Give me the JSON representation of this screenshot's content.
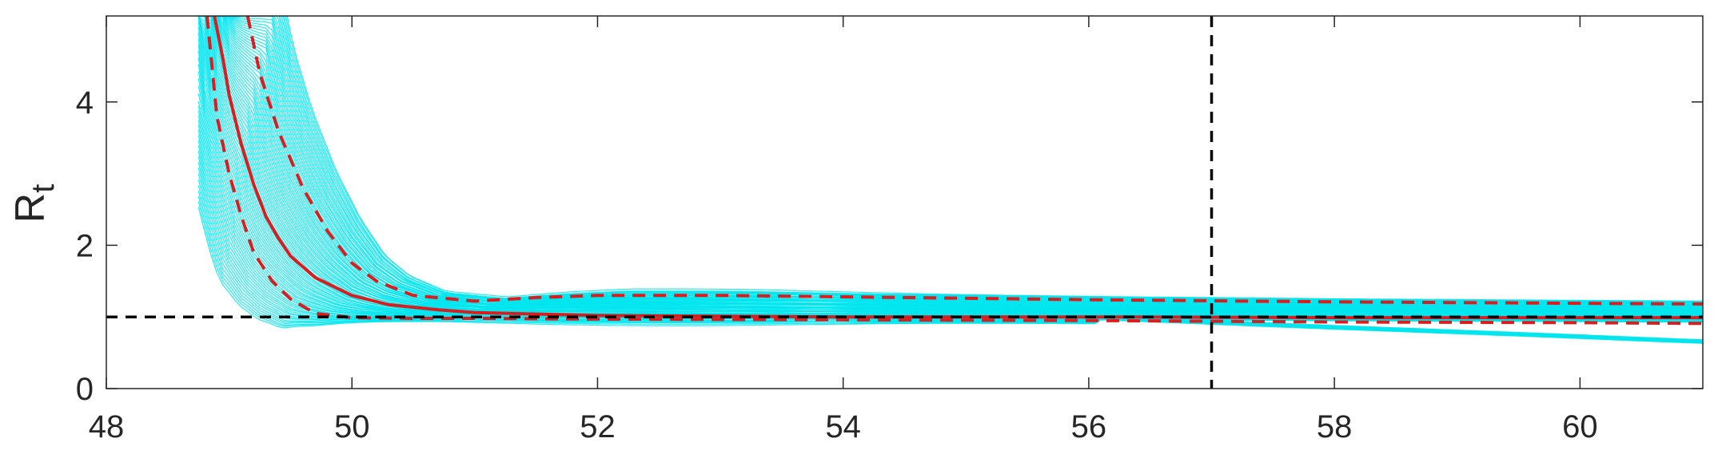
{
  "chart_data": {
    "type": "line",
    "title": "",
    "xlabel": "",
    "ylabel": "R",
    "ylabel_subscript": "t",
    "xlim": [
      48,
      61
    ],
    "ylim": [
      0,
      5.2
    ],
    "xticks": [
      48,
      50,
      52,
      54,
      56,
      58,
      60
    ],
    "yticks": [
      0,
      2,
      4
    ],
    "grid": false,
    "legend": "none",
    "colors": {
      "samples": "#00e5ee",
      "median": "#d81e1e",
      "bounds": "#d81e1e",
      "reference": "#000000",
      "axes": "#262626"
    },
    "reference_lines": {
      "horizontal_y": 1,
      "vertical_x": 57
    },
    "series": [
      {
        "role": "median",
        "x": [
          48.88,
          48.95,
          49.0,
          49.1,
          49.2,
          49.3,
          49.4,
          49.5,
          49.7,
          50.0,
          50.3,
          50.7,
          51.0,
          52.0,
          54.0,
          56.0,
          58.0,
          60.0,
          61.0
        ],
        "y": [
          5.2,
          4.6,
          4.1,
          3.4,
          2.85,
          2.4,
          2.1,
          1.85,
          1.55,
          1.3,
          1.17,
          1.1,
          1.06,
          1.02,
          1.0,
          1.0,
          0.99,
          0.99,
          0.99
        ]
      },
      {
        "role": "upper-bound",
        "x": [
          49.15,
          49.25,
          49.4,
          49.6,
          49.8,
          50.0,
          50.2,
          50.5,
          51.0,
          51.5,
          52.0,
          53.0,
          54.0,
          56.0,
          58.0,
          60.0,
          61.0
        ],
        "y": [
          5.2,
          4.4,
          3.6,
          2.8,
          2.2,
          1.75,
          1.5,
          1.3,
          1.22,
          1.27,
          1.3,
          1.3,
          1.28,
          1.24,
          1.21,
          1.19,
          1.18
        ]
      },
      {
        "role": "lower-bound",
        "x": [
          48.82,
          48.9,
          49.0,
          49.1,
          49.2,
          49.35,
          49.5,
          49.7,
          50.0,
          50.5,
          51.0,
          52.0,
          54.0,
          56.0,
          58.0,
          60.0,
          61.0
        ],
        "y": [
          5.2,
          3.8,
          3.0,
          2.4,
          1.9,
          1.5,
          1.25,
          1.05,
          0.99,
          0.98,
          0.98,
          0.97,
          0.96,
          0.95,
          0.93,
          0.92,
          0.91
        ]
      }
    ]
  }
}
